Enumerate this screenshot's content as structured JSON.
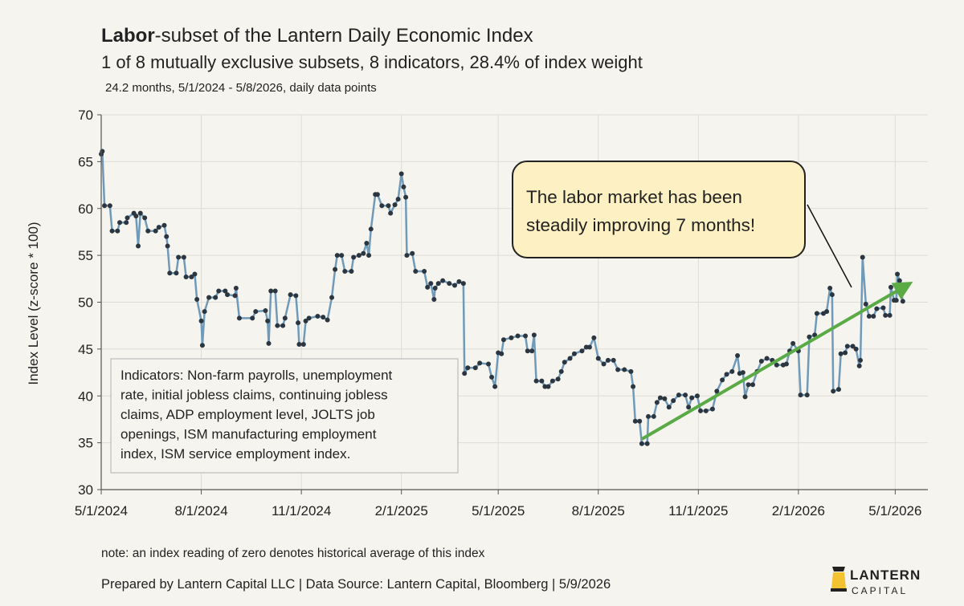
{
  "chart_data": {
    "type": "line",
    "title_bold": "Labor",
    "title": "-subset of the Lantern Daily Economic Index",
    "subtitle": "1 of 8 mutually exclusive subsets, 8 indicators, 28.4% of index weight",
    "subsubtitle": "24.2 months, 5/1/2024 - 5/8/2026, daily data points",
    "y_label": "Index Level (z-score * 100)",
    "annotation": [
      "The labor market has been",
      "steadily improving 7 months!"
    ],
    "indicators_note": [
      "Indicators: Non-farm payrolls, unemployment",
      "rate, initial jobless claims, continuing jobless",
      "claims, ADP employment level, JOLTS job",
      "openings, ISM manufacturing employment",
      "index, ISM service employment index."
    ],
    "note": "note: an index reading of zero denotes historical average of this index",
    "footer": "Prepared by Lantern Capital LLC | Data Source: Lantern Capital, Bloomberg | 5/9/2026",
    "logo": [
      "LANTERN",
      "CAPITAL"
    ],
    "line_color": "#6f9aba",
    "marker_color": "#2b3640",
    "grid": true,
    "xlim": [
      "5/1/2024",
      "5/31/2026"
    ],
    "xticks": [
      "5/1/2024",
      "8/1/2024",
      "11/1/2024",
      "2/1/2025",
      "5/1/2025",
      "8/1/2025",
      "11/1/2025",
      "2/1/2026",
      "5/1/2026"
    ],
    "ylim": [
      30,
      70
    ],
    "yticks": [
      30,
      35,
      40,
      45,
      50,
      55,
      60,
      65,
      70
    ],
    "x": [
      "5/1/2024",
      "5/2/2024",
      "5/4/2024",
      "5/9/2024",
      "5/11/2024",
      "5/16/2024",
      "5/18/2024",
      "5/24/2024",
      "5/25/2024",
      "5/31/2024",
      "6/2/2024",
      "6/4/2024",
      "6/6/2024",
      "6/10/2024",
      "6/13/2024",
      "6/20/2024",
      "6/23/2024",
      "6/28/2024",
      "6/30/2024",
      "7/1/2024",
      "7/3/2024",
      "7/9/2024",
      "7/11/2024",
      "7/16/2024",
      "7/18/2024",
      "7/23/2024",
      "7/26/2024",
      "7/28/2024",
      "8/1/2024",
      "8/2/2024",
      "8/4/2024",
      "8/8/2024",
      "8/14/2024",
      "8/17/2024",
      "8/23/2024",
      "8/25/2024",
      "9/1/2024",
      "9/2/2024",
      "9/5/2024",
      "9/17/2024",
      "9/20/2024",
      "9/29/2024",
      "10/1/2024",
      "10/2/2024",
      "10/4/2024",
      "10/8/2024",
      "10/10/2024",
      "10/15/2024",
      "10/17/2024",
      "10/22/2024",
      "10/27/2024",
      "10/29/2024",
      "10/30/2024",
      "11/3/2024",
      "11/5/2024",
      "11/8/2024",
      "11/16/2024",
      "11/21/2024",
      "11/25/2024",
      "11/29/2024",
      "12/2/2024",
      "12/4/2024",
      "12/8/2024",
      "12/11/2024",
      "12/17/2024",
      "12/19/2024",
      "12/24/2024",
      "12/28/2024",
      "12/31/2024",
      "1/2/2025",
      "1/4/2025",
      "1/8/2025",
      "1/10/2025",
      "1/14/2025",
      "1/20/2025",
      "1/22/2025",
      "1/26/2025",
      "1/29/2025",
      "2/1/2025",
      "2/3/2025",
      "2/5/2025",
      "2/6/2025",
      "2/11/2025",
      "2/14/2025",
      "2/22/2025",
      "2/25/2025",
      "2/28/2025",
      "3/3/2025",
      "3/4/2025",
      "3/7/2025",
      "3/11/2025",
      "3/17/2025",
      "3/22/2025",
      "3/26/2025",
      "3/30/2025",
      "3/31/2025",
      "4/3/2025",
      "4/10/2025",
      "4/14/2025",
      "4/22/2025",
      "4/25/2025",
      "4/28/2025",
      "5/1/2025",
      "5/4/2025",
      "5/6/2025",
      "5/13/2025",
      "5/19/2025",
      "5/26/2025",
      "5/28/2025",
      "6/1/2025",
      "6/3/2025",
      "6/5/2025",
      "6/10/2025",
      "6/13/2025",
      "6/16/2025",
      "6/20/2025",
      "6/25/2025",
      "6/28/2025",
      "7/1/2025",
      "7/6/2025",
      "7/10/2025",
      "7/17/2025",
      "7/21/2025",
      "7/24/2025",
      "7/28/2025",
      "8/1/2025",
      "8/6/2025",
      "8/10/2025",
      "8/15/2025",
      "8/19/2025",
      "8/25/2025",
      "8/31/2025",
      "9/2/2025",
      "9/4/2025",
      "9/8/2025",
      "9/10/2025",
      "9/15/2025",
      "9/16/2025",
      "9/21/2025",
      "9/24/2025",
      "9/27/2025",
      "10/1/2025",
      "10/5/2025",
      "10/9/2025",
      "10/14/2025",
      "10/20/2025",
      "10/23/2025",
      "10/26/2025",
      "10/31/2025",
      "11/3/2025",
      "11/8/2025",
      "11/14/2025",
      "11/18/2025",
      "11/23/2025",
      "11/27/2025",
      "12/2/2025",
      "12/7/2025",
      "12/9/2025",
      "12/12/2025",
      "12/14/2025",
      "12/17/2025",
      "12/21/2025",
      "12/25/2025",
      "12/29/2025",
      "1/3/2026",
      "1/8/2026",
      "1/12/2026",
      "1/18/2026",
      "1/21/2026",
      "1/24/2026",
      "1/27/2026",
      "2/1/2026",
      "2/3/2026",
      "2/9/2026",
      "2/11/2026",
      "2/16/2026",
      "2/18/2026",
      "2/24/2026",
      "2/27/2026",
      "3/2/2026",
      "3/4/2026",
      "3/5/2026",
      "3/10/2026",
      "3/12/2026",
      "3/16/2026",
      "3/18/2026",
      "3/23/2026",
      "3/26/2026",
      "3/29/2026",
      "3/30/2026",
      "4/1/2026",
      "4/4/2026",
      "4/7/2026",
      "4/11/2026",
      "4/14/2026",
      "4/20/2026",
      "4/22/2026",
      "4/26/2026",
      "4/27/2026",
      "4/30/2026",
      "5/2/2026",
      "5/3/2026",
      "5/5/2026",
      "5/8/2026"
    ],
    "values": [
      65.8,
      66.1,
      60.3,
      60.3,
      57.6,
      57.6,
      58.5,
      58.5,
      59.0,
      59.5,
      59.2,
      56.0,
      59.5,
      59.0,
      57.6,
      57.6,
      58.0,
      58.2,
      57.0,
      56.0,
      53.1,
      53.1,
      54.8,
      54.8,
      52.7,
      52.7,
      53.0,
      50.3,
      48.0,
      45.4,
      49.0,
      50.5,
      50.5,
      51.2,
      51.2,
      50.8,
      50.7,
      51.5,
      48.3,
      48.3,
      49.0,
      49.1,
      48.0,
      45.6,
      51.2,
      51.2,
      47.5,
      47.5,
      48.3,
      50.8,
      50.7,
      47.8,
      45.5,
      45.5,
      48.0,
      48.3,
      48.5,
      48.4,
      48.1,
      50.5,
      53.5,
      55.0,
      55.0,
      53.3,
      53.3,
      54.8,
      55.0,
      55.2,
      56.3,
      55.0,
      57.8,
      61.5,
      61.5,
      60.3,
      60.3,
      59.5,
      60.4,
      61.0,
      63.7,
      62.3,
      61.2,
      55.0,
      55.2,
      53.3,
      53.3,
      51.6,
      52.0,
      50.3,
      51.5,
      52.0,
      52.3,
      52.0,
      51.8,
      52.2,
      52.0,
      42.4,
      43.0,
      43.0,
      43.5,
      43.4,
      42.0,
      41.0,
      44.6,
      44.5,
      46.0,
      46.2,
      46.4,
      46.4,
      44.8,
      44.8,
      46.5,
      41.6,
      41.6,
      41.0,
      41.0,
      41.6,
      41.8,
      42.6,
      43.6,
      44.0,
      44.5,
      44.8,
      45.2,
      45.2,
      46.2,
      44.0,
      43.4,
      43.8,
      43.8,
      42.8,
      42.8,
      42.6,
      41.0,
      37.3,
      37.3,
      34.9,
      34.9,
      37.8,
      37.8,
      39.3,
      39.8,
      39.7,
      38.8,
      39.5,
      40.1,
      40.1,
      38.8,
      39.8,
      40.0,
      38.4,
      38.4,
      38.6,
      40.5,
      41.7,
      42.3,
      42.6,
      44.3,
      42.4,
      42.5,
      39.9,
      41.2,
      41.2,
      42.6,
      43.7,
      44.0,
      43.8,
      43.3,
      43.3,
      43.4,
      44.8,
      45.6,
      44.8,
      40.1,
      40.1,
      46.3,
      46.5,
      48.8,
      48.8,
      49.0,
      51.5,
      50.8,
      40.5,
      40.7,
      44.5,
      44.6,
      45.3,
      45.3,
      45.0,
      43.2,
      43.8,
      54.8,
      49.8,
      48.5,
      48.5,
      49.3,
      49.4,
      48.6,
      48.6,
      51.6,
      50.2,
      50.2,
      53.0,
      52.3,
      50.1
    ]
  }
}
